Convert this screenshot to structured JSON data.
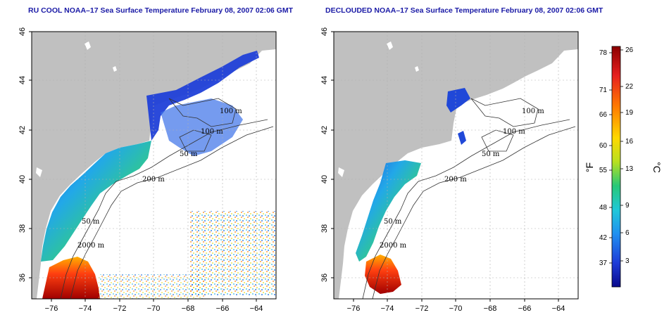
{
  "panels": [
    {
      "title": "RU COOL NOAA–17 Sea Surface Temperature February 08, 2007 02:06 GMT",
      "contour_labels": [
        "100 m",
        "100 m",
        "50 m",
        "200 m",
        "50 m",
        "2000 m"
      ]
    },
    {
      "title": "DECLOUDED NOAA–17 Sea Surface Temperature February 08, 2007 02:06 GMT",
      "contour_labels": [
        "100 m",
        "100 m",
        "50 m",
        "200 m",
        "50 m",
        "2000 m"
      ]
    }
  ],
  "axes": {
    "x_ticks": [
      "−76",
      "−74",
      "−72",
      "−70",
      "−68",
      "−66",
      "−64"
    ],
    "y_ticks": [
      "46",
      "44",
      "42",
      "40",
      "38",
      "36"
    ]
  },
  "colorbar": {
    "f_unit": "°F",
    "c_unit": "°C",
    "f_ticks": [
      "78",
      "71",
      "66",
      "60",
      "55",
      "48",
      "42",
      "37"
    ],
    "c_ticks": [
      "26",
      "22",
      "19",
      "16",
      "13",
      "9",
      "6",
      "3"
    ],
    "colors": [
      "#8b0000",
      "#e62020",
      "#ff7a00",
      "#ffd800",
      "#b8e020",
      "#28c878",
      "#20c8d8",
      "#2090f0",
      "#1e3cd8",
      "#0a0a8c"
    ]
  },
  "colors": {
    "land": "#c0c0c0",
    "water": "#ffffff",
    "grid": "#b0b0b0",
    "title": "#1a1aa6"
  }
}
